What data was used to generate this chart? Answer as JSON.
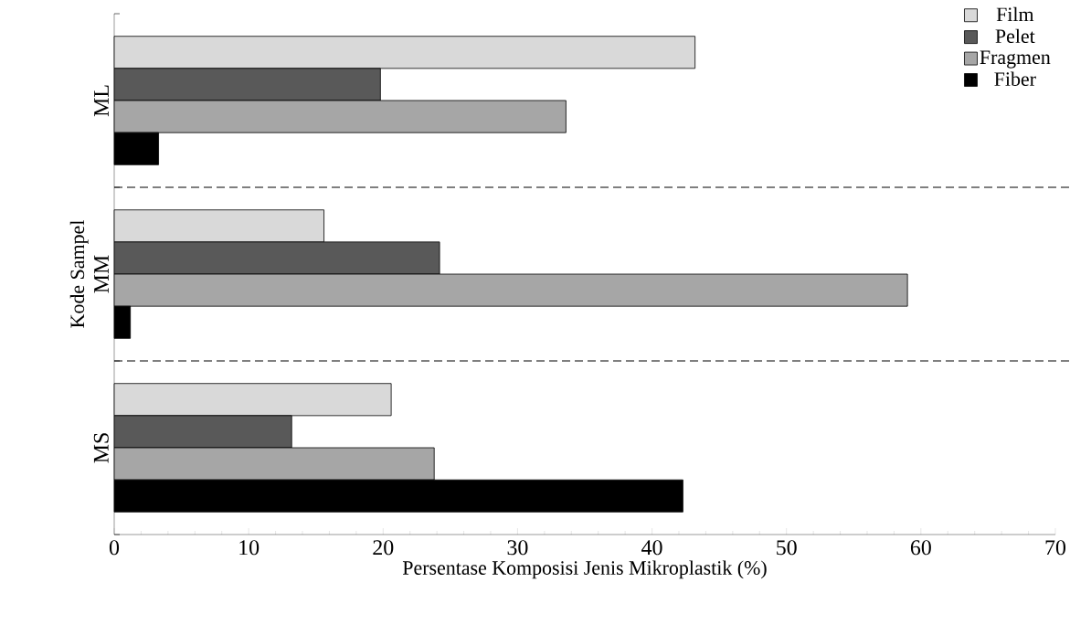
{
  "chart_data": {
    "type": "bar",
    "orientation": "horizontal",
    "xlabel": "Persentase Komposisi Jenis Mikroplastik (%)",
    "ylabel": "Kode Sampel",
    "categories": [
      "ML",
      "MM",
      "MS"
    ],
    "series": [
      {
        "name": "Film",
        "color": "#d9d9d9",
        "values": [
          43.2,
          15.6,
          20.6
        ]
      },
      {
        "name": "Pelet",
        "color": "#595959",
        "values": [
          19.8,
          24.2,
          13.2
        ]
      },
      {
        "name": "Fragmen",
        "color": "#a6a6a6",
        "values": [
          33.6,
          59.0,
          23.8
        ]
      },
      {
        "name": "Fiber",
        "color": "#000000",
        "values": [
          3.3,
          1.2,
          42.3
        ]
      }
    ],
    "xlim": [
      0,
      70
    ],
    "xticks": [
      0,
      10,
      20,
      30,
      40,
      50,
      60,
      70
    ],
    "grid": "y",
    "legend": "top right"
  }
}
